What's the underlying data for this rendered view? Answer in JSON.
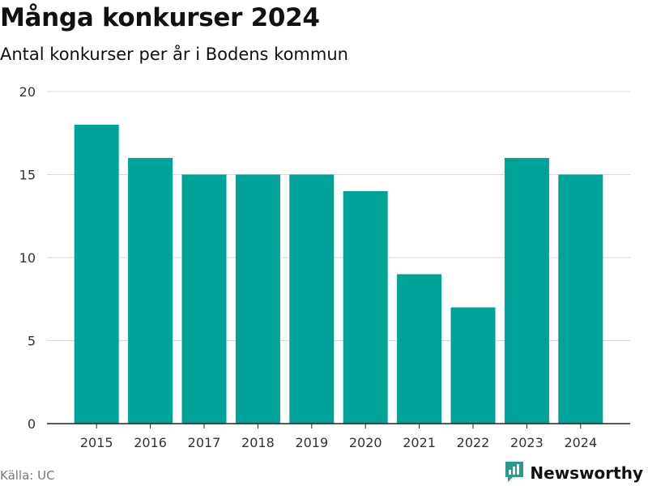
{
  "header": {
    "title": "Många konkurser 2024",
    "subtitle": "Antal konkurser per år i Bodens kommun"
  },
  "footer": {
    "source": "Källa: UC",
    "brand": "Newsworthy"
  },
  "colors": {
    "bar": "#00a398",
    "brand": "#2a9a8c",
    "grid": "#d9d9d9",
    "axis": "#222222"
  },
  "icons": {
    "brand_logo": "newsworthy-logo-icon"
  },
  "chart_data": {
    "type": "bar",
    "title": "Många konkurser 2024",
    "subtitle": "Antal konkurser per år i Bodens kommun",
    "xlabel": "",
    "ylabel": "",
    "categories": [
      "2015",
      "2016",
      "2017",
      "2018",
      "2019",
      "2020",
      "2021",
      "2022",
      "2023",
      "2024"
    ],
    "values": [
      18,
      16,
      15,
      15,
      15,
      14,
      9,
      7,
      16,
      15
    ],
    "ylim": [
      0,
      20
    ],
    "yticks": [
      "0",
      "5",
      "10",
      "15",
      "20"
    ],
    "grid": true,
    "legend": "none"
  }
}
